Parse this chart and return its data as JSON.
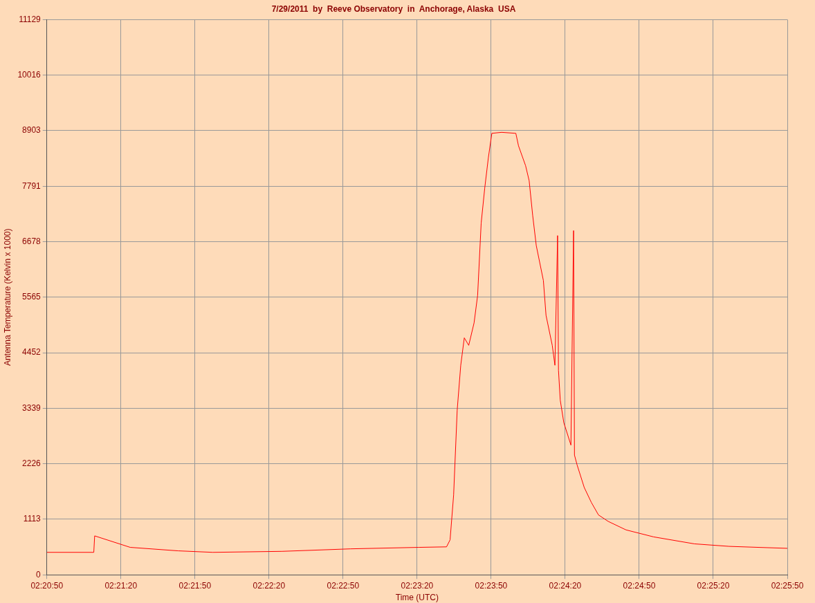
{
  "chart_data": {
    "type": "line",
    "title": "7/29/2011  by  Reeve Observatory  in  Anchorage, Alaska  USA",
    "xlabel": "Time (UTC)",
    "ylabel": "Antenna Temperature (Kelvin x 1000)",
    "xlim": [
      2.347222,
      2.430556
    ],
    "xticks": [
      {
        "value": 2.347222,
        "label": "02:20:50"
      },
      {
        "value": 2.355556,
        "label": "02:21:20"
      },
      {
        "value": 2.363889,
        "label": "02:21:50"
      },
      {
        "value": 2.372222,
        "label": "02:22:20"
      },
      {
        "value": 2.380556,
        "label": "02:22:50"
      },
      {
        "value": 2.388889,
        "label": "02:23:20"
      },
      {
        "value": 2.397222,
        "label": "02:23:50"
      },
      {
        "value": 2.405556,
        "label": "02:24:20"
      },
      {
        "value": 2.413889,
        "label": "02:24:50"
      },
      {
        "value": 2.422222,
        "label": "02:25:20"
      },
      {
        "value": 2.430556,
        "label": "02:25:50"
      }
    ],
    "ylim": [
      0,
      11129
    ],
    "yticks": [
      0,
      1113,
      2226,
      3339,
      4452,
      5565,
      6678,
      7791,
      8903,
      10016,
      11129
    ],
    "grid": true,
    "legend": false,
    "marker": "none",
    "line_style": "solid",
    "series": [
      {
        "color": "#ff0000",
        "x": [
          2.347222,
          2.3525,
          2.3526,
          2.3566,
          2.362,
          2.3659,
          2.3737,
          2.3814,
          2.3891,
          2.3922,
          2.3926,
          2.393,
          2.3934,
          2.3938,
          2.3942,
          2.3947,
          2.3953,
          2.3957,
          2.3961,
          2.3965,
          2.3969,
          2.3973,
          2.3984,
          2.4,
          2.4003,
          2.4011,
          2.4015,
          2.4019,
          2.4023,
          2.4031,
          2.4034,
          2.4041,
          2.4044,
          2.4047,
          2.4048,
          2.405,
          2.4054,
          2.4062,
          2.4065,
          2.4066,
          2.4069,
          2.4077,
          2.4085,
          2.4093,
          2.4104,
          2.4124,
          2.4155,
          2.4201,
          2.424,
          2.430556
        ],
        "values": [
          450,
          450,
          780,
          550,
          480,
          450,
          470,
          520,
          550,
          560,
          700,
          1600,
          3300,
          4200,
          4750,
          4600,
          5050,
          5600,
          7050,
          7750,
          8350,
          8850,
          8870,
          8850,
          8600,
          8200,
          7900,
          7200,
          6600,
          5900,
          5200,
          4600,
          4200,
          6800,
          4100,
          3500,
          3050,
          2600,
          6900,
          2400,
          2200,
          1750,
          1450,
          1200,
          1070,
          900,
          760,
          620,
          570,
          530
        ]
      }
    ]
  }
}
